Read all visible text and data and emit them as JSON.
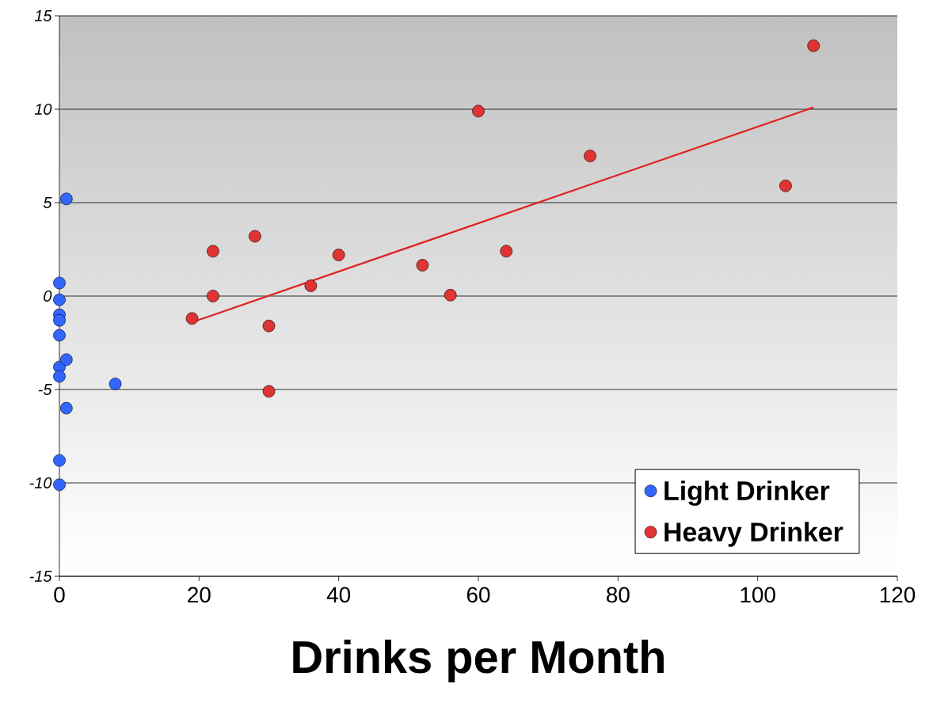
{
  "chart_data": {
    "type": "scatter",
    "xlabel": "Drinks per Month",
    "xlim": [
      0,
      120
    ],
    "xticks": [
      0,
      20,
      40,
      60,
      80,
      100,
      120
    ],
    "ylim": [
      -15,
      15
    ],
    "yticks": [
      -15,
      -10,
      -5,
      0,
      5,
      10,
      15
    ],
    "grid": "y",
    "legend": "bottom right",
    "series": [
      {
        "name": "Light Drinker",
        "marker": "circle",
        "color": "#3366ff",
        "x": [
          1,
          0,
          0,
          0,
          0,
          0,
          0,
          1,
          0,
          8,
          1,
          0,
          0
        ],
        "values": [
          5.2,
          0.7,
          -0.2,
          -1,
          -1.3,
          -2.1,
          -3.8,
          -3.4,
          -4.3,
          -4.7,
          -6,
          -8.8,
          -10.1
        ]
      },
      {
        "name": "Heavy Drinker",
        "marker": "circle",
        "color": "#e03333",
        "x": [
          19,
          22,
          22,
          28,
          30,
          30,
          36,
          40,
          52,
          56,
          60,
          64,
          76,
          104,
          108
        ],
        "values": [
          -1.2,
          2.4,
          0,
          3.2,
          -1.6,
          -5.1,
          0.55,
          2.2,
          1.65,
          0.05,
          9.9,
          2.4,
          7.5,
          5.9,
          13.4
        ]
      },
      {
        "type": "line",
        "marker": "none",
        "color": "#e02020",
        "x": [
          19,
          108
        ],
        "values": [
          -1.4,
          10.1
        ]
      }
    ]
  }
}
